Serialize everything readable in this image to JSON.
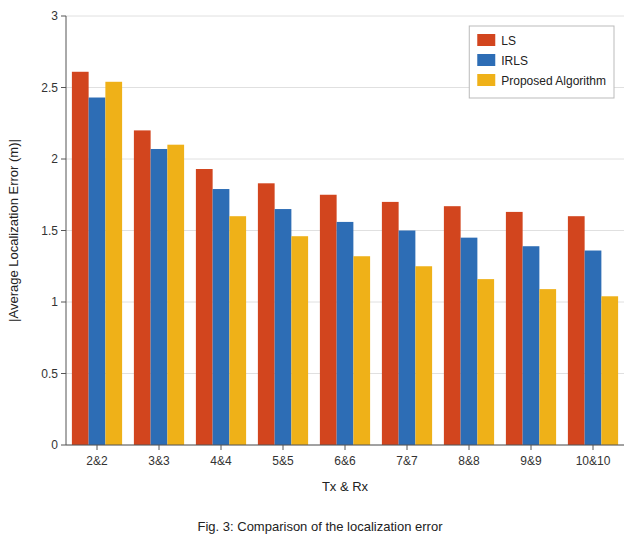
{
  "chart_data": {
    "type": "bar",
    "xlabel": "Tx & Rx",
    "ylabel": "|Average Localization Error (m)|",
    "caption": "Fig. 3: Comparison of the localization error",
    "categories": [
      "2&2",
      "3&3",
      "4&4",
      "5&5",
      "6&6",
      "7&7",
      "8&8",
      "9&9",
      "10&10"
    ],
    "series": [
      {
        "name": "LS",
        "color": "#D2451E",
        "values": [
          2.61,
          2.2,
          1.93,
          1.83,
          1.75,
          1.7,
          1.67,
          1.63,
          1.6
        ]
      },
      {
        "name": "IRLS",
        "color": "#2D6DB5",
        "values": [
          2.43,
          2.07,
          1.79,
          1.65,
          1.56,
          1.5,
          1.45,
          1.39,
          1.36
        ]
      },
      {
        "name": "Proposed Algorithm",
        "color": "#EFB118",
        "values": [
          2.54,
          2.1,
          1.6,
          1.46,
          1.32,
          1.25,
          1.16,
          1.09,
          1.04
        ]
      }
    ],
    "ylim": [
      0,
      3
    ],
    "yticks": [
      0,
      0.5,
      1,
      1.5,
      2,
      2.5,
      3
    ],
    "grid": true,
    "legend": "upper right"
  }
}
